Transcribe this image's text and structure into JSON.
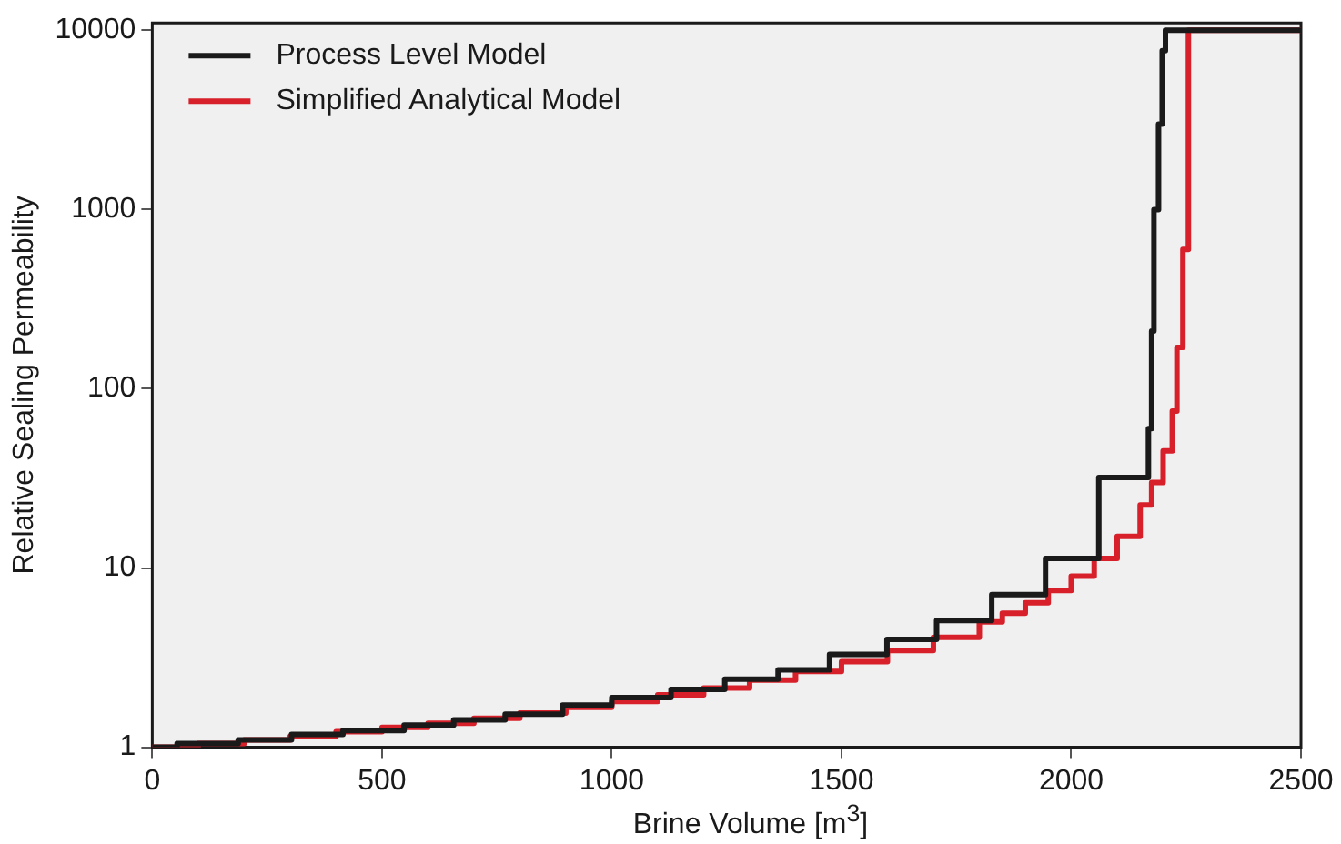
{
  "chart_data": {
    "type": "step",
    "xlabel": "Brine Volume [m$^{3}$]",
    "ylabel": "Relative Sealing Permeability",
    "xlim": [
      0,
      2500
    ],
    "xticks": [
      0,
      500,
      1000,
      1500,
      2000,
      2500
    ],
    "ylim": [
      1,
      11000
    ],
    "yticks": [
      1,
      10,
      100,
      1000,
      10000
    ],
    "log": "y",
    "legend": "top left",
    "grid": false,
    "marker": "none",
    "line_style": "solid",
    "series": [
      {
        "name": "Process Level Model",
        "color": "#1a1a1a",
        "x": [
          0,
          54,
          187,
          303,
          415,
          548,
          656,
          768,
          893,
          1000,
          1129,
          1246,
          1362,
          1474,
          1599,
          1707,
          1827,
          1944,
          2060,
          2168,
          2175,
          2180,
          2190,
          2198,
          2205,
          2500
        ],
        "values": [
          1,
          1.05,
          1.1,
          1.18,
          1.24,
          1.33,
          1.42,
          1.53,
          1.72,
          1.89,
          2.1,
          2.4,
          2.7,
          3.3,
          4,
          5.1,
          7.1,
          11.3,
          32,
          60,
          210,
          1000,
          3000,
          7700,
          10000,
          10000
        ]
      },
      {
        "name": "Simplified Analytical Model",
        "color": "#d7202a",
        "x": [
          0,
          100,
          200,
          300,
          400,
          500,
          600,
          700,
          800,
          900,
          1000,
          1100,
          1200,
          1300,
          1400,
          1500,
          1600,
          1700,
          1800,
          1850,
          1900,
          1950,
          2000,
          2050,
          2100,
          2150,
          2175,
          2200,
          2220,
          2230,
          2243,
          2255,
          2500
        ],
        "values": [
          1,
          1.05,
          1.1,
          1.15,
          1.22,
          1.29,
          1.36,
          1.45,
          1.55,
          1.67,
          1.8,
          1.96,
          2.14,
          2.37,
          2.65,
          3,
          3.46,
          4.1,
          5,
          5.6,
          6.4,
          7.5,
          9,
          11.3,
          15,
          22.5,
          30,
          45,
          75,
          170,
          600,
          10000,
          10000
        ]
      }
    ]
  }
}
